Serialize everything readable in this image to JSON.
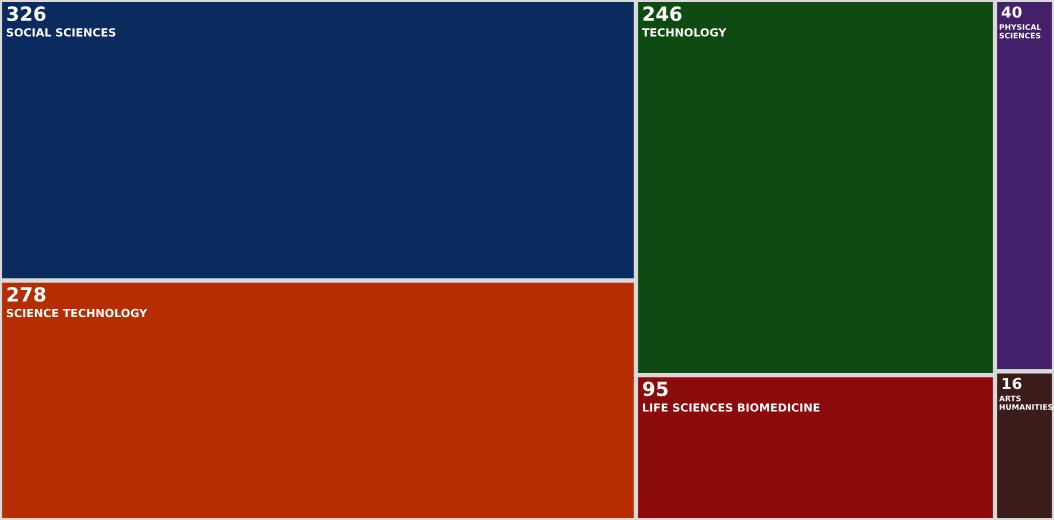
{
  "chart_data": {
    "type": "other",
    "categories": [
      "SOCIAL SCIENCES",
      "SCIENCE TECHNOLOGY",
      "TECHNOLOGY",
      "LIFE SCIENCES BIOMEDICINE",
      "PHYSICAL SCIENCES",
      "ARTS HUMANITIES"
    ],
    "values": [
      326,
      278,
      246,
      95,
      40,
      16
    ],
    "colors": [
      "#0b2a5e",
      "#b52d00",
      "#0f4a12",
      "#8b0a0a",
      "#45206a",
      "#3a1c1a"
    ],
    "data_labels": true
  }
}
